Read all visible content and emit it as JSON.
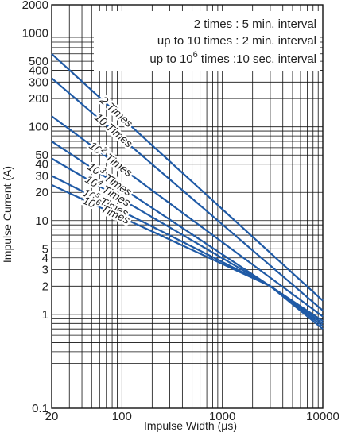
{
  "chart_data": {
    "type": "line",
    "title": "",
    "xlabel": "Impulse Width (μs)",
    "ylabel": "Impulse Current (A)",
    "x_scale": "log",
    "y_scale": "log",
    "xlim": [
      20,
      10000
    ],
    "ylim": [
      0.1,
      2000
    ],
    "x_ticks": [
      20,
      100,
      1000,
      10000
    ],
    "x_tick_labels": [
      "20",
      "100",
      "1000",
      "10000"
    ],
    "y_ticks": [
      0.1,
      1,
      2,
      3,
      4,
      5,
      10,
      20,
      30,
      40,
      50,
      100,
      200,
      300,
      400,
      500,
      1000,
      2000
    ],
    "y_tick_labels": [
      "0.1",
      "1",
      "2",
      "3",
      "4",
      "5",
      "10",
      "20",
      "30",
      "40",
      "50",
      "100",
      "200",
      "300",
      "400",
      "500",
      "1000",
      "2000"
    ],
    "grid": true,
    "notes": [
      {
        "text": "2 times :  5 min. interval"
      },
      {
        "text": "up to 10 times :  2 min. interval"
      },
      {
        "text": "up to 10",
        "sup": "6",
        "after": " times :10 sec. interval"
      }
    ],
    "series": [
      {
        "name": "2 Times",
        "label_main": "2 Times",
        "label_sup": "",
        "label_rest": "",
        "x": [
          20,
          10000
        ],
        "y": [
          600,
          1.4
        ]
      },
      {
        "name": "10 Times",
        "label_main": "10 Times",
        "label_sup": "",
        "label_rest": "",
        "x": [
          20,
          10000
        ],
        "y": [
          330,
          1.1
        ]
      },
      {
        "name": "10^2 Times",
        "label_main": "10",
        "label_sup": "2",
        "label_rest": " Times",
        "x": [
          20,
          10000
        ],
        "y": [
          130,
          0.95
        ]
      },
      {
        "name": "10^3 Times",
        "label_main": "10",
        "label_sup": "3",
        "label_rest": " Times",
        "x": [
          20,
          3000,
          10000
        ],
        "y": [
          70,
          2.0,
          0.85
        ]
      },
      {
        "name": "10^4 Times",
        "label_main": "10",
        "label_sup": "4",
        "label_rest": " Times",
        "x": [
          20,
          3000,
          10000
        ],
        "y": [
          46,
          2.0,
          0.8
        ]
      },
      {
        "name": "10^5 Times",
        "label_main": "10",
        "label_sup": "5",
        "label_rest": " Times",
        "x": [
          20,
          3000,
          10000
        ],
        "y": [
          30,
          2.0,
          0.75
        ]
      },
      {
        "name": "10^6 Times",
        "label_main": "10",
        "label_sup": "6",
        "label_rest": " Times",
        "x": [
          20,
          3000,
          10000
        ],
        "y": [
          24,
          2.0,
          0.7
        ]
      }
    ],
    "line_color": "#1f5aa6",
    "grid_color": "#111111"
  }
}
